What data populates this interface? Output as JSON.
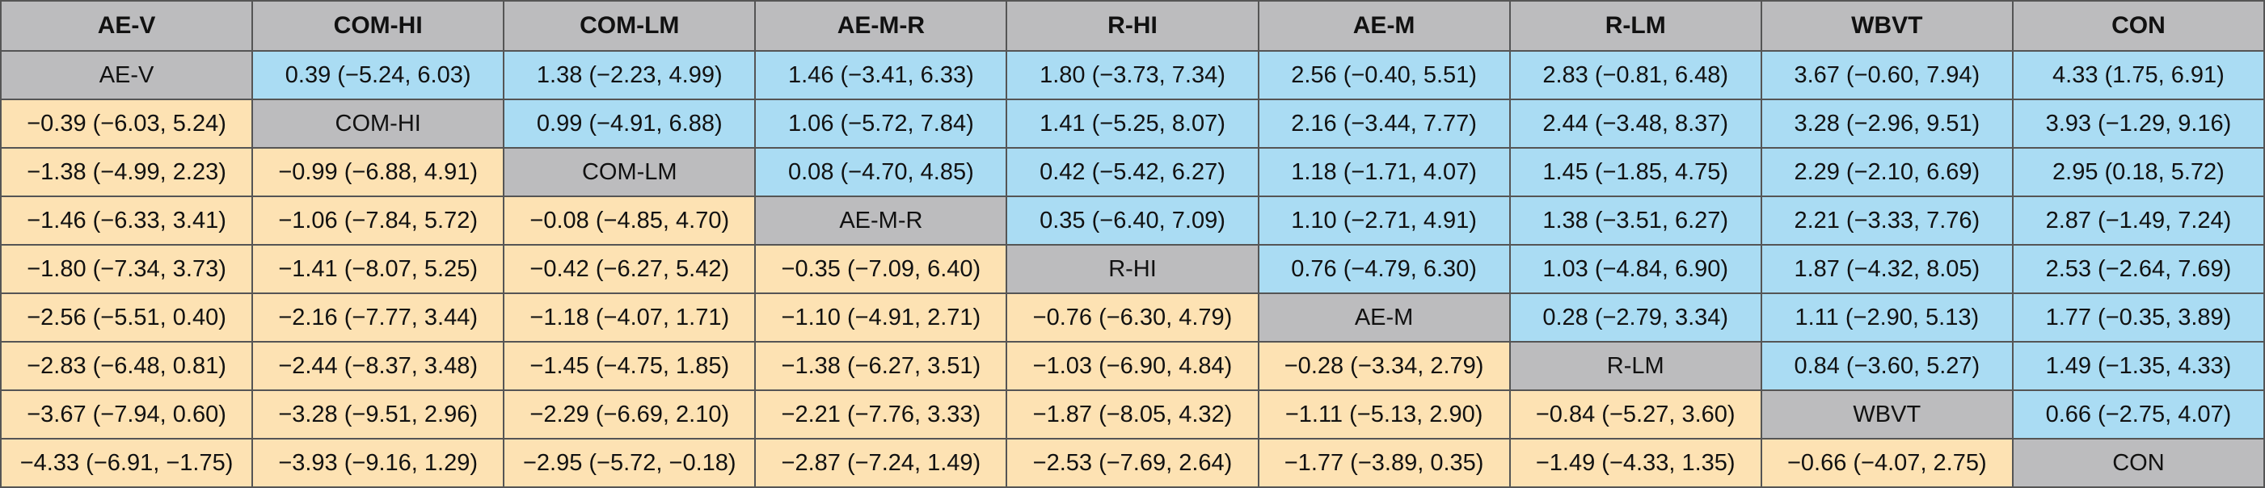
{
  "table": {
    "headers": [
      "AE-V",
      "COM-HI",
      "COM-LM",
      "AE-M-R",
      "R-HI",
      "AE-M",
      "R-LM",
      "WBVT",
      "CON"
    ],
    "rows": [
      [
        "AE-V",
        "0.39 (−5.24, 6.03)",
        "1.38 (−2.23, 4.99)",
        "1.46 (−3.41, 6.33)",
        "1.80 (−3.73, 7.34)",
        "2.56 (−0.40, 5.51)",
        "2.83 (−0.81, 6.48)",
        "3.67 (−0.60, 7.94)",
        "4.33 (1.75, 6.91)"
      ],
      [
        "−0.39 (−6.03, 5.24)",
        "COM-HI",
        "0.99 (−4.91, 6.88)",
        "1.06 (−5.72, 7.84)",
        "1.41 (−5.25, 8.07)",
        "2.16 (−3.44, 7.77)",
        "2.44 (−3.48, 8.37)",
        "3.28 (−2.96, 9.51)",
        "3.93 (−1.29, 9.16)"
      ],
      [
        "−1.38 (−4.99, 2.23)",
        "−0.99 (−6.88, 4.91)",
        "COM-LM",
        "0.08 (−4.70, 4.85)",
        "0.42 (−5.42, 6.27)",
        "1.18 (−1.71, 4.07)",
        "1.45 (−1.85, 4.75)",
        "2.29 (−2.10, 6.69)",
        "2.95 (0.18, 5.72)"
      ],
      [
        "−1.46 (−6.33, 3.41)",
        "−1.06 (−7.84, 5.72)",
        "−0.08 (−4.85, 4.70)",
        "AE-M-R",
        "0.35 (−6.40, 7.09)",
        "1.10 (−2.71, 4.91)",
        "1.38 (−3.51, 6.27)",
        "2.21 (−3.33, 7.76)",
        "2.87 (−1.49, 7.24)"
      ],
      [
        "−1.80 (−7.34, 3.73)",
        "−1.41 (−8.07, 5.25)",
        "−0.42 (−6.27, 5.42)",
        "−0.35 (−7.09, 6.40)",
        "R-HI",
        "0.76 (−4.79, 6.30)",
        "1.03 (−4.84, 6.90)",
        "1.87 (−4.32, 8.05)",
        "2.53 (−2.64, 7.69)"
      ],
      [
        "−2.56 (−5.51, 0.40)",
        "−2.16 (−7.77, 3.44)",
        "−1.18 (−4.07, 1.71)",
        "−1.10 (−4.91, 2.71)",
        "−0.76 (−6.30, 4.79)",
        "AE-M",
        "0.28 (−2.79, 3.34)",
        "1.11 (−2.90, 5.13)",
        "1.77 (−0.35, 3.89)"
      ],
      [
        "−2.83 (−6.48, 0.81)",
        "−2.44 (−8.37, 3.48)",
        "−1.45 (−4.75, 1.85)",
        "−1.38 (−6.27, 3.51)",
        "−1.03 (−6.90, 4.84)",
        "−0.28 (−3.34, 2.79)",
        "R-LM",
        "0.84 (−3.60, 5.27)",
        "1.49 (−1.35, 4.33)"
      ],
      [
        "−3.67 (−7.94, 0.60)",
        "−3.28 (−9.51, 2.96)",
        "−2.29 (−6.69, 2.10)",
        "−2.21 (−7.76, 3.33)",
        "−1.87 (−8.05, 4.32)",
        "−1.11 (−5.13, 2.90)",
        "−0.84 (−5.27, 3.60)",
        "WBVT",
        "0.66 (−2.75, 4.07)"
      ],
      [
        "−4.33 (−6.91, −1.75)",
        "−3.93 (−9.16, 1.29)",
        "−2.95 (−5.72, −0.18)",
        "−2.87 (−7.24, 1.49)",
        "−2.53 (−7.69, 2.64)",
        "−1.77 (−3.89, 0.35)",
        "−1.49 (−4.33, 1.35)",
        "−0.66 (−4.07, 2.75)",
        "CON"
      ]
    ]
  },
  "colors": {
    "header_bg": "#bcbcbe",
    "diagonal_bg": "#bcbcbe",
    "upper_bg": "#aadcf3",
    "lower_bg": "#fde2b3",
    "border": "#555555"
  }
}
